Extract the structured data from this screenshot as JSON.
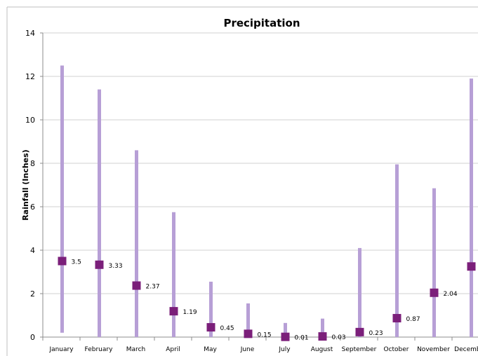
{
  "chart_data": {
    "type": "range-marker",
    "title": "Precipitation",
    "xlabel": "",
    "ylabel": "Rainfall (Inches)",
    "ylim": [
      0,
      14
    ],
    "yticks": [
      0,
      2,
      4,
      6,
      8,
      10,
      12,
      14
    ],
    "grid": true,
    "legend": "none",
    "categories": [
      "January",
      "February",
      "March",
      "April",
      "May",
      "June",
      "July",
      "August",
      "September",
      "October",
      "November",
      "December"
    ],
    "series": [
      {
        "name": "",
        "low": [
          0.2,
          0.0,
          0.0,
          0.0,
          0.0,
          0.0,
          0.0,
          0.0,
          0.0,
          0.0,
          0.0,
          0.0
        ],
        "high": [
          12.5,
          11.4,
          8.6,
          5.75,
          2.55,
          1.55,
          0.65,
          0.85,
          4.1,
          7.95,
          6.85,
          11.9
        ],
        "mean": [
          3.5,
          3.33,
          2.37,
          1.19,
          0.45,
          0.15,
          0.01,
          0.03,
          0.23,
          0.87,
          2.04,
          3.25
        ],
        "labels": [
          "3.5",
          "3.33",
          "2.37",
          "1.19",
          "0.45",
          "0.15",
          "0.01",
          "0.03",
          "0.23",
          "0.87",
          "2.04",
          ""
        ]
      }
    ],
    "colors": {
      "range_bar": "#b79fd6",
      "marker": "#7b1f7a",
      "grid": "#d0d0d0",
      "axis": "#8c8c8c",
      "text": "#000000"
    }
  }
}
